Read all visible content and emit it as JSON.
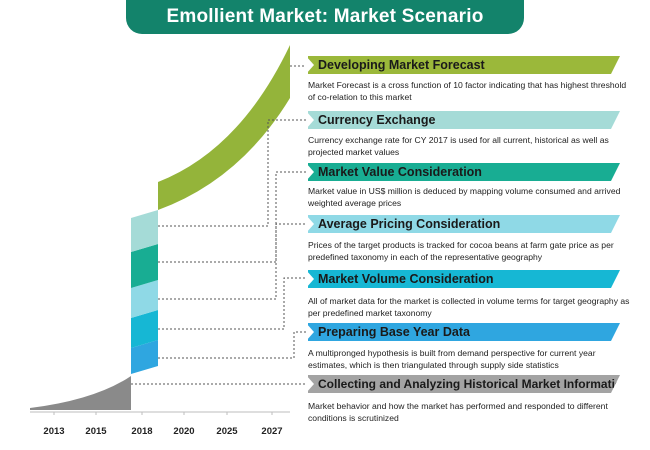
{
  "title": "Emollient Market:  Market Scenario",
  "years": [
    "2013",
    "2015",
    "2018",
    "2020",
    "2025",
    "2027"
  ],
  "stages": [
    {
      "title": "Developing Market Forecast",
      "description": "Market Forecast is a cross function of 10 factor indicating that has highest threshold of co-relation to this market",
      "color": "#9bb83a"
    },
    {
      "title": "Currency Exchange",
      "description": "Currency exchange rate for CY 2017 is used for all current, historical as well as projected market values",
      "color": "#a5dbd7"
    },
    {
      "title": "Market Value Consideration",
      "description": "Market value in US$ million is deduced by mapping volume consumed and arrived weighted average prices",
      "color": "#18ad93"
    },
    {
      "title": "Average Pricing Consideration",
      "description": "Prices of the target products is tracked for cocoa beans at farm gate price as per predefined taxonomy in each of the representative geography",
      "color": "#8fd9e6"
    },
    {
      "title": "Market Volume Consideration",
      "description": "All of market data for the market is collected in volume terms for target geography as per predefined market taxonomy",
      "color": "#16b7d4"
    },
    {
      "title": "Preparing Base Year Data",
      "description": "A multipronged hypothesis is built from demand perspective for current year estimates, which is then triangulated through supply side statistics",
      "color": "#2fa6e0"
    },
    {
      "title": "Collecting and Analyzing Historical Market Information",
      "description": "Market behavior and how the market has performed and responded to different conditions is scrutinized",
      "color": "#a3a3a3"
    }
  ],
  "colors": {
    "banner": "#13836b",
    "forecast_curve": "#94b43a",
    "history_curve": "#8a8a8a",
    "connector": "#555555"
  }
}
